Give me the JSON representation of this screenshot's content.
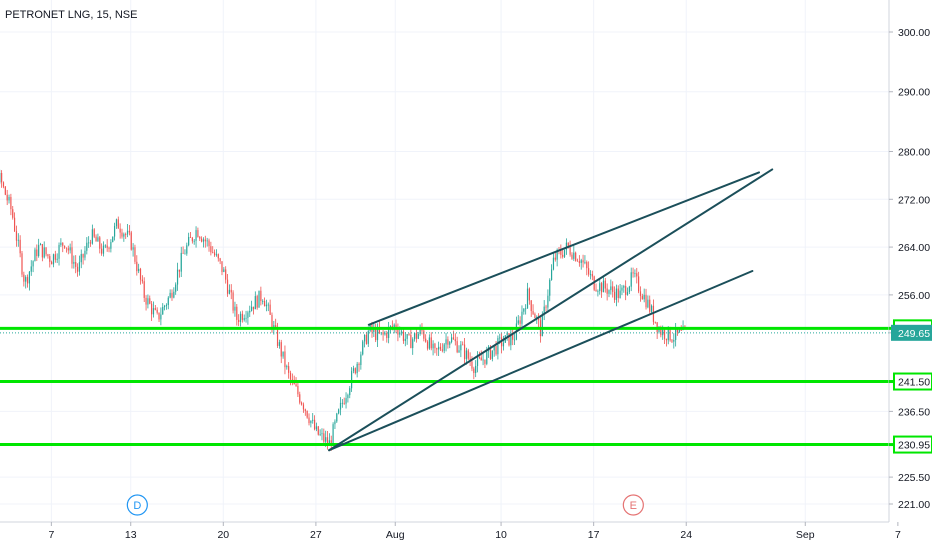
{
  "chart_data": {
    "type": "candlestick",
    "title": "PETRONET LNG, 15, NSE",
    "xlabel": "",
    "ylabel": "",
    "x_ticks": [
      "7",
      "13",
      "20",
      "27",
      "Aug",
      "10",
      "17",
      "24",
      "Sep",
      "7"
    ],
    "x_tick_positions": [
      7,
      13,
      20,
      27,
      33,
      41,
      48,
      55,
      64,
      71
    ],
    "y_ticks": [
      "300.00",
      "290.00",
      "280.00",
      "272.00",
      "264.00",
      "256.00",
      "250.40",
      "249.65",
      "241.50",
      "236.50",
      "230.95",
      "225.50",
      "221.00"
    ],
    "ylim": [
      219,
      303
    ],
    "xlim": [
      1,
      76
    ],
    "grid": true,
    "horizontal_levels": [
      {
        "value": 250.4,
        "label": "250.40",
        "color": "#00e600"
      },
      {
        "value": 241.5,
        "label": "241.50",
        "color": "#00e600"
      },
      {
        "value": 230.95,
        "label": "230.95",
        "color": "#00e600"
      }
    ],
    "current_price": {
      "value": 249.65,
      "label": "249.65",
      "color": "#26a69a"
    },
    "channel_lines": [
      {
        "from": [
          28,
          230
        ],
        "to": [
          61.5,
          277
        ]
      },
      {
        "from": [
          31,
          251
        ],
        "to": [
          60.5,
          276.5
        ]
      },
      {
        "from": [
          28,
          230
        ],
        "to": [
          60,
          260
        ]
      }
    ],
    "price_path": [
      [
        1,
        272
      ],
      [
        3,
        276
      ],
      [
        4,
        270
      ],
      [
        5,
        258
      ],
      [
        6,
        264
      ],
      [
        7,
        262
      ],
      [
        8,
        265
      ],
      [
        9,
        260
      ],
      [
        10,
        266
      ],
      [
        11,
        263
      ],
      [
        12,
        268
      ],
      [
        13,
        265
      ],
      [
        14,
        256
      ],
      [
        15,
        252
      ],
      [
        16,
        256
      ],
      [
        17,
        263
      ],
      [
        18,
        267
      ],
      [
        19,
        264
      ],
      [
        20,
        260
      ],
      [
        21,
        252
      ],
      [
        22,
        254
      ],
      [
        23,
        256
      ],
      [
        24,
        249
      ],
      [
        25,
        242
      ],
      [
        26,
        238
      ],
      [
        27,
        233
      ],
      [
        28,
        231
      ],
      [
        29,
        238
      ],
      [
        30,
        244
      ],
      [
        31,
        250
      ],
      [
        32,
        249
      ],
      [
        33,
        251
      ],
      [
        34,
        248
      ],
      [
        35,
        250
      ],
      [
        36,
        246
      ],
      [
        37,
        249
      ],
      [
        38,
        247
      ],
      [
        39,
        244
      ],
      [
        40,
        246
      ],
      [
        41,
        248
      ],
      [
        42,
        249
      ],
      [
        43,
        256
      ],
      [
        44,
        250
      ],
      [
        45,
        262
      ],
      [
        46,
        264
      ],
      [
        47,
        262
      ],
      [
        48,
        258
      ],
      [
        49,
        257
      ],
      [
        50,
        256
      ],
      [
        51,
        259
      ],
      [
        52,
        255
      ],
      [
        53,
        250
      ],
      [
        54,
        249
      ],
      [
        55,
        249.65
      ]
    ],
    "events": [
      {
        "x": 13.5,
        "label": "D",
        "color": "#2196f3"
      },
      {
        "x": 51,
        "label": "E",
        "color": "#e57373"
      }
    ]
  }
}
